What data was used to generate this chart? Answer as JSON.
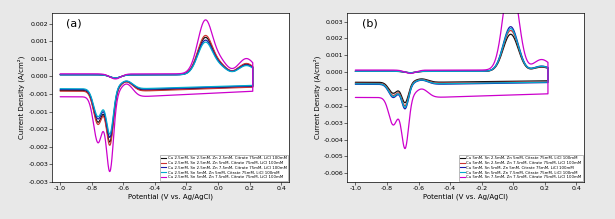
{
  "panel_a": {
    "label": "(a)",
    "xlim": [
      -1.05,
      0.45
    ],
    "ylim": [
      -0.003,
      0.0018
    ],
    "xticks": [
      -1.0,
      -0.8,
      -0.6,
      -0.4,
      -0.2,
      0.0,
      0.2,
      0.4
    ],
    "yticks": [
      -0.003,
      -0.0025,
      -0.002,
      -0.0015,
      -0.001,
      -0.0005,
      0.0,
      0.0005,
      0.001,
      0.0015
    ],
    "ylabel": "Current Density (A/cm²)",
    "xlabel": "Potential (V vs. Ag/AgCl)",
    "curves": [
      {
        "color": "#111111",
        "lw": 0.9,
        "label": "Cu 2.5mM, Sn 2.5mM, Zn 2.5mM, Citrate 75mM, LiCl 100mM",
        "sc_cat": 1.0,
        "sc_an": 1.0
      },
      {
        "color": "#cc3333",
        "lw": 0.9,
        "label": "Cu 2.5mM, Sn 2.5mM, Zn 5mM, Citrate 75mM, LiCl 100mM",
        "sc_cat": 1.05,
        "sc_an": 1.05
      },
      {
        "color": "#1a1aaa",
        "lw": 0.9,
        "label": "Cu 2.5mM, Sn 2.5mM, Zn 7.5mM, Citrate 75mM, LiCl 100mM",
        "sc_cat": 0.93,
        "sc_an": 0.93
      },
      {
        "color": "#00aacc",
        "lw": 0.9,
        "label": "Cu 2.5mM, Sn 5mM, Zn 5mM, Citrate 75mM, LiCl 100mM",
        "sc_cat": 0.88,
        "sc_an": 0.88
      },
      {
        "color": "#cc00cc",
        "lw": 0.9,
        "label": "Cu 2.5mM, Sn 5mM, Zn 7.5mM, Citrate 75mM, LiCl 100mM",
        "sc_cat": 1.45,
        "sc_an": 1.45
      }
    ]
  },
  "panel_b": {
    "label": "(b)",
    "xlim": [
      -1.05,
      0.45
    ],
    "ylim": [
      -0.0065,
      0.0035
    ],
    "xticks": [
      -1.0,
      -0.8,
      -0.6,
      -0.4,
      -0.2,
      0.0,
      0.2,
      0.4
    ],
    "yticks": [
      -0.006,
      -0.005,
      -0.004,
      -0.003,
      -0.002,
      -0.001,
      0.0,
      0.001,
      0.002,
      0.003
    ],
    "ylabel": "Current Density (A/cm²)",
    "xlabel": "Potential (V vs. Ag/AgCl)",
    "curves": [
      {
        "color": "#111111",
        "lw": 0.9,
        "label": "Cu 5mM, Sn 2.5mM, Zn 5mM, Citrate 75mM, LiCl 100mM",
        "sc_cat": 1.0,
        "sc_an": 1.0
      },
      {
        "color": "#cc3333",
        "lw": 0.9,
        "label": "Cu 5mM, Sn 2.5mM, Zn 7.5mM, Citrate 75mM, LiCl 100mM",
        "sc_cat": 1.1,
        "sc_an": 1.1
      },
      {
        "color": "#1a1aaa",
        "lw": 0.9,
        "label": "Cu 5mM, Sn 5mM, Zn 5mM, Citrate 75mM, LiCl 100mM",
        "sc_cat": 1.2,
        "sc_an": 1.2
      },
      {
        "color": "#00aacc",
        "lw": 0.9,
        "label": "Cu 5mM, Sn 5mM, Zn 7.5mM, Citrate 75mM, LiCl 100mM",
        "sc_cat": 1.15,
        "sc_an": 1.15
      },
      {
        "color": "#cc00cc",
        "lw": 0.9,
        "label": "Cu 5mM, Sn 7.5mM, Zn 7.5mM, Citrate 75mM, LiCl 100mM",
        "sc_cat": 2.5,
        "sc_an": 2.5
      }
    ]
  },
  "background_color": "#e8e8e8",
  "plot_bg": "#ffffff"
}
